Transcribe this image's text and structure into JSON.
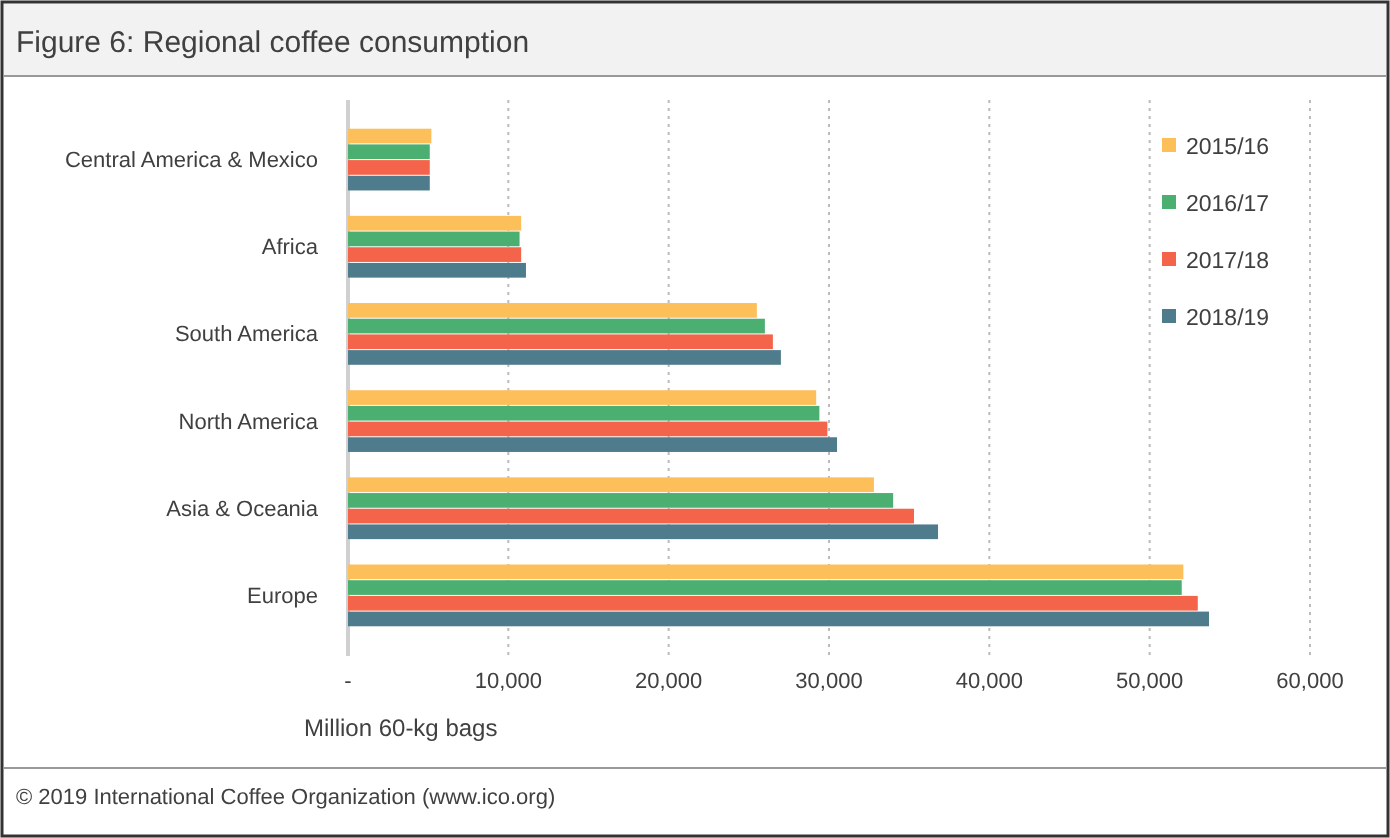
{
  "chart_data": {
    "type": "bar",
    "orientation": "horizontal",
    "title": "Figure 6: Regional coffee consumption",
    "xlabel": "Million 60-kg bags",
    "categories": [
      "Central America & Mexico",
      "Africa",
      "South America",
      "North America",
      "Asia & Oceania",
      "Europe"
    ],
    "series": [
      {
        "name": "2015/16",
        "color": "#fdbf5a",
        "values": [
          5200,
          10800,
          25500,
          29200,
          32800,
          52100
        ]
      },
      {
        "name": "2016/17",
        "color": "#4caf72",
        "values": [
          5100,
          10700,
          26000,
          29400,
          34000,
          52000
        ]
      },
      {
        "name": "2017/18",
        "color": "#f4644b",
        "values": [
          5100,
          10800,
          26500,
          29900,
          35300,
          53000
        ]
      },
      {
        "name": "2018/19",
        "color": "#4f7c8c",
        "values": [
          5100,
          11100,
          27000,
          30500,
          36800,
          53700
        ]
      }
    ],
    "xlim": [
      0,
      60000
    ],
    "xticks": [
      {
        "value": 0,
        "label": "-"
      },
      {
        "value": 10000,
        "label": "10,000"
      },
      {
        "value": 20000,
        "label": "20,000"
      },
      {
        "value": 30000,
        "label": "30,000"
      },
      {
        "value": 40000,
        "label": "40,000"
      },
      {
        "value": 50000,
        "label": "50,000"
      },
      {
        "value": 60000,
        "label": "60,000"
      }
    ],
    "grid": "x",
    "legend": "top right",
    "annotations": [
      "© 2019 International Coffee Organization (www.ico.org)"
    ]
  }
}
